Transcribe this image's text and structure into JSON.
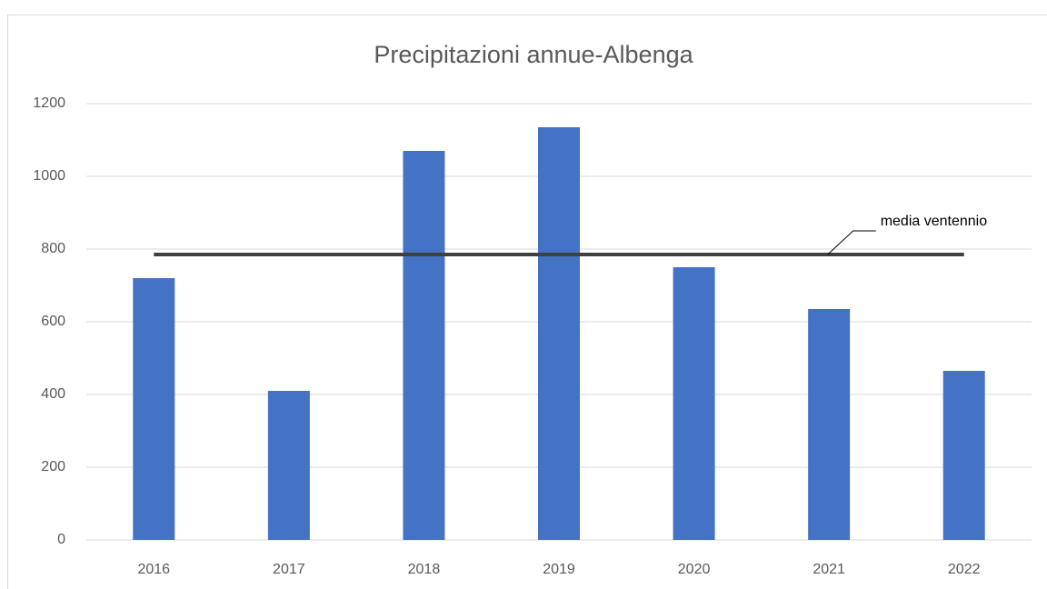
{
  "chart_data": {
    "type": "bar",
    "title": "Precipitazioni annue-Albenga",
    "categories": [
      "2016",
      "2017",
      "2018",
      "2019",
      "2020",
      "2021",
      "2022"
    ],
    "values": [
      720,
      410,
      1070,
      1135,
      750,
      635,
      465
    ],
    "color": "#4472c4",
    "ylim": [
      0,
      1200
    ],
    "yticks": [
      0,
      200,
      400,
      600,
      800,
      1000,
      1200
    ],
    "grid": true,
    "reference_line": {
      "label": "media ventennio",
      "value": 785,
      "color": "#404040"
    }
  }
}
